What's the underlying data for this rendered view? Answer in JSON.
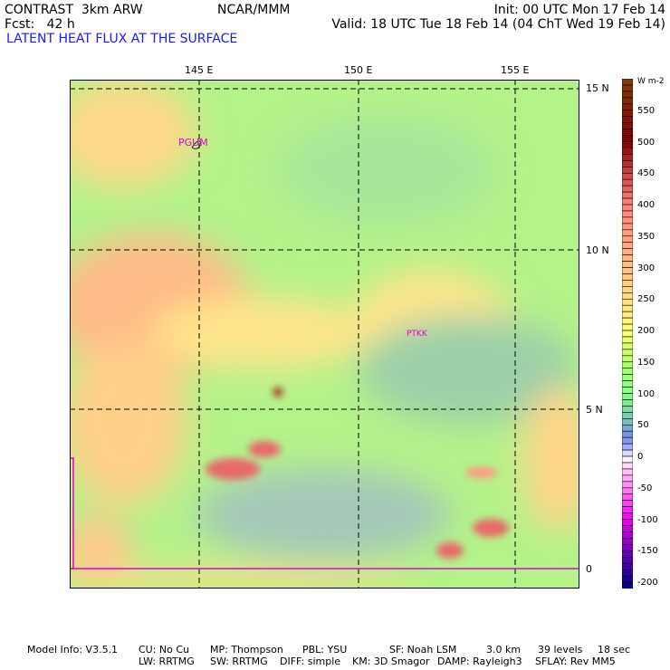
{
  "header": {
    "experiment": "CONTRAST  3km ARW",
    "institution": "NCAR/MMM",
    "init": "Init: 00 UTC Mon 17 Feb 14",
    "forecast": "Fcst:   42 h",
    "valid": "Valid: 18 UTC Tue 18 Feb 14 (04 ChT Wed 19 Feb 14)",
    "field_title": "LATENT HEAT FLUX AT THE SURFACE"
  },
  "map": {
    "lon_labels": [
      "145 E",
      "150 E",
      "155 E"
    ],
    "lat_labels": [
      "15 N",
      "10 N",
      "5 N",
      "0"
    ],
    "stations": [
      "PGUM",
      "PTKK"
    ]
  },
  "colorbar": {
    "units": "W m-2",
    "labels": [
      "550",
      "500",
      "450",
      "400",
      "350",
      "300",
      "250",
      "200",
      "150",
      "100",
      "50",
      "0",
      "-50",
      "-100",
      "-150",
      "-200"
    ],
    "min": -210,
    "max": 600,
    "step": 10
  },
  "footer": {
    "line1": [
      "Model Info: V3.5.1",
      "CU: No Cu",
      "MP: Thompson",
      "PBL: YSU",
      "SF: Noah LSM",
      "3.0 km",
      "39 levels",
      "18 sec"
    ],
    "line2": [
      "LW: RRTMG",
      "SW: RRTMG",
      "DIFF: simple",
      "KM: 3D Smagor",
      "DAMP: Rayleigh3",
      "SFLAY: Rev MM5"
    ]
  }
}
